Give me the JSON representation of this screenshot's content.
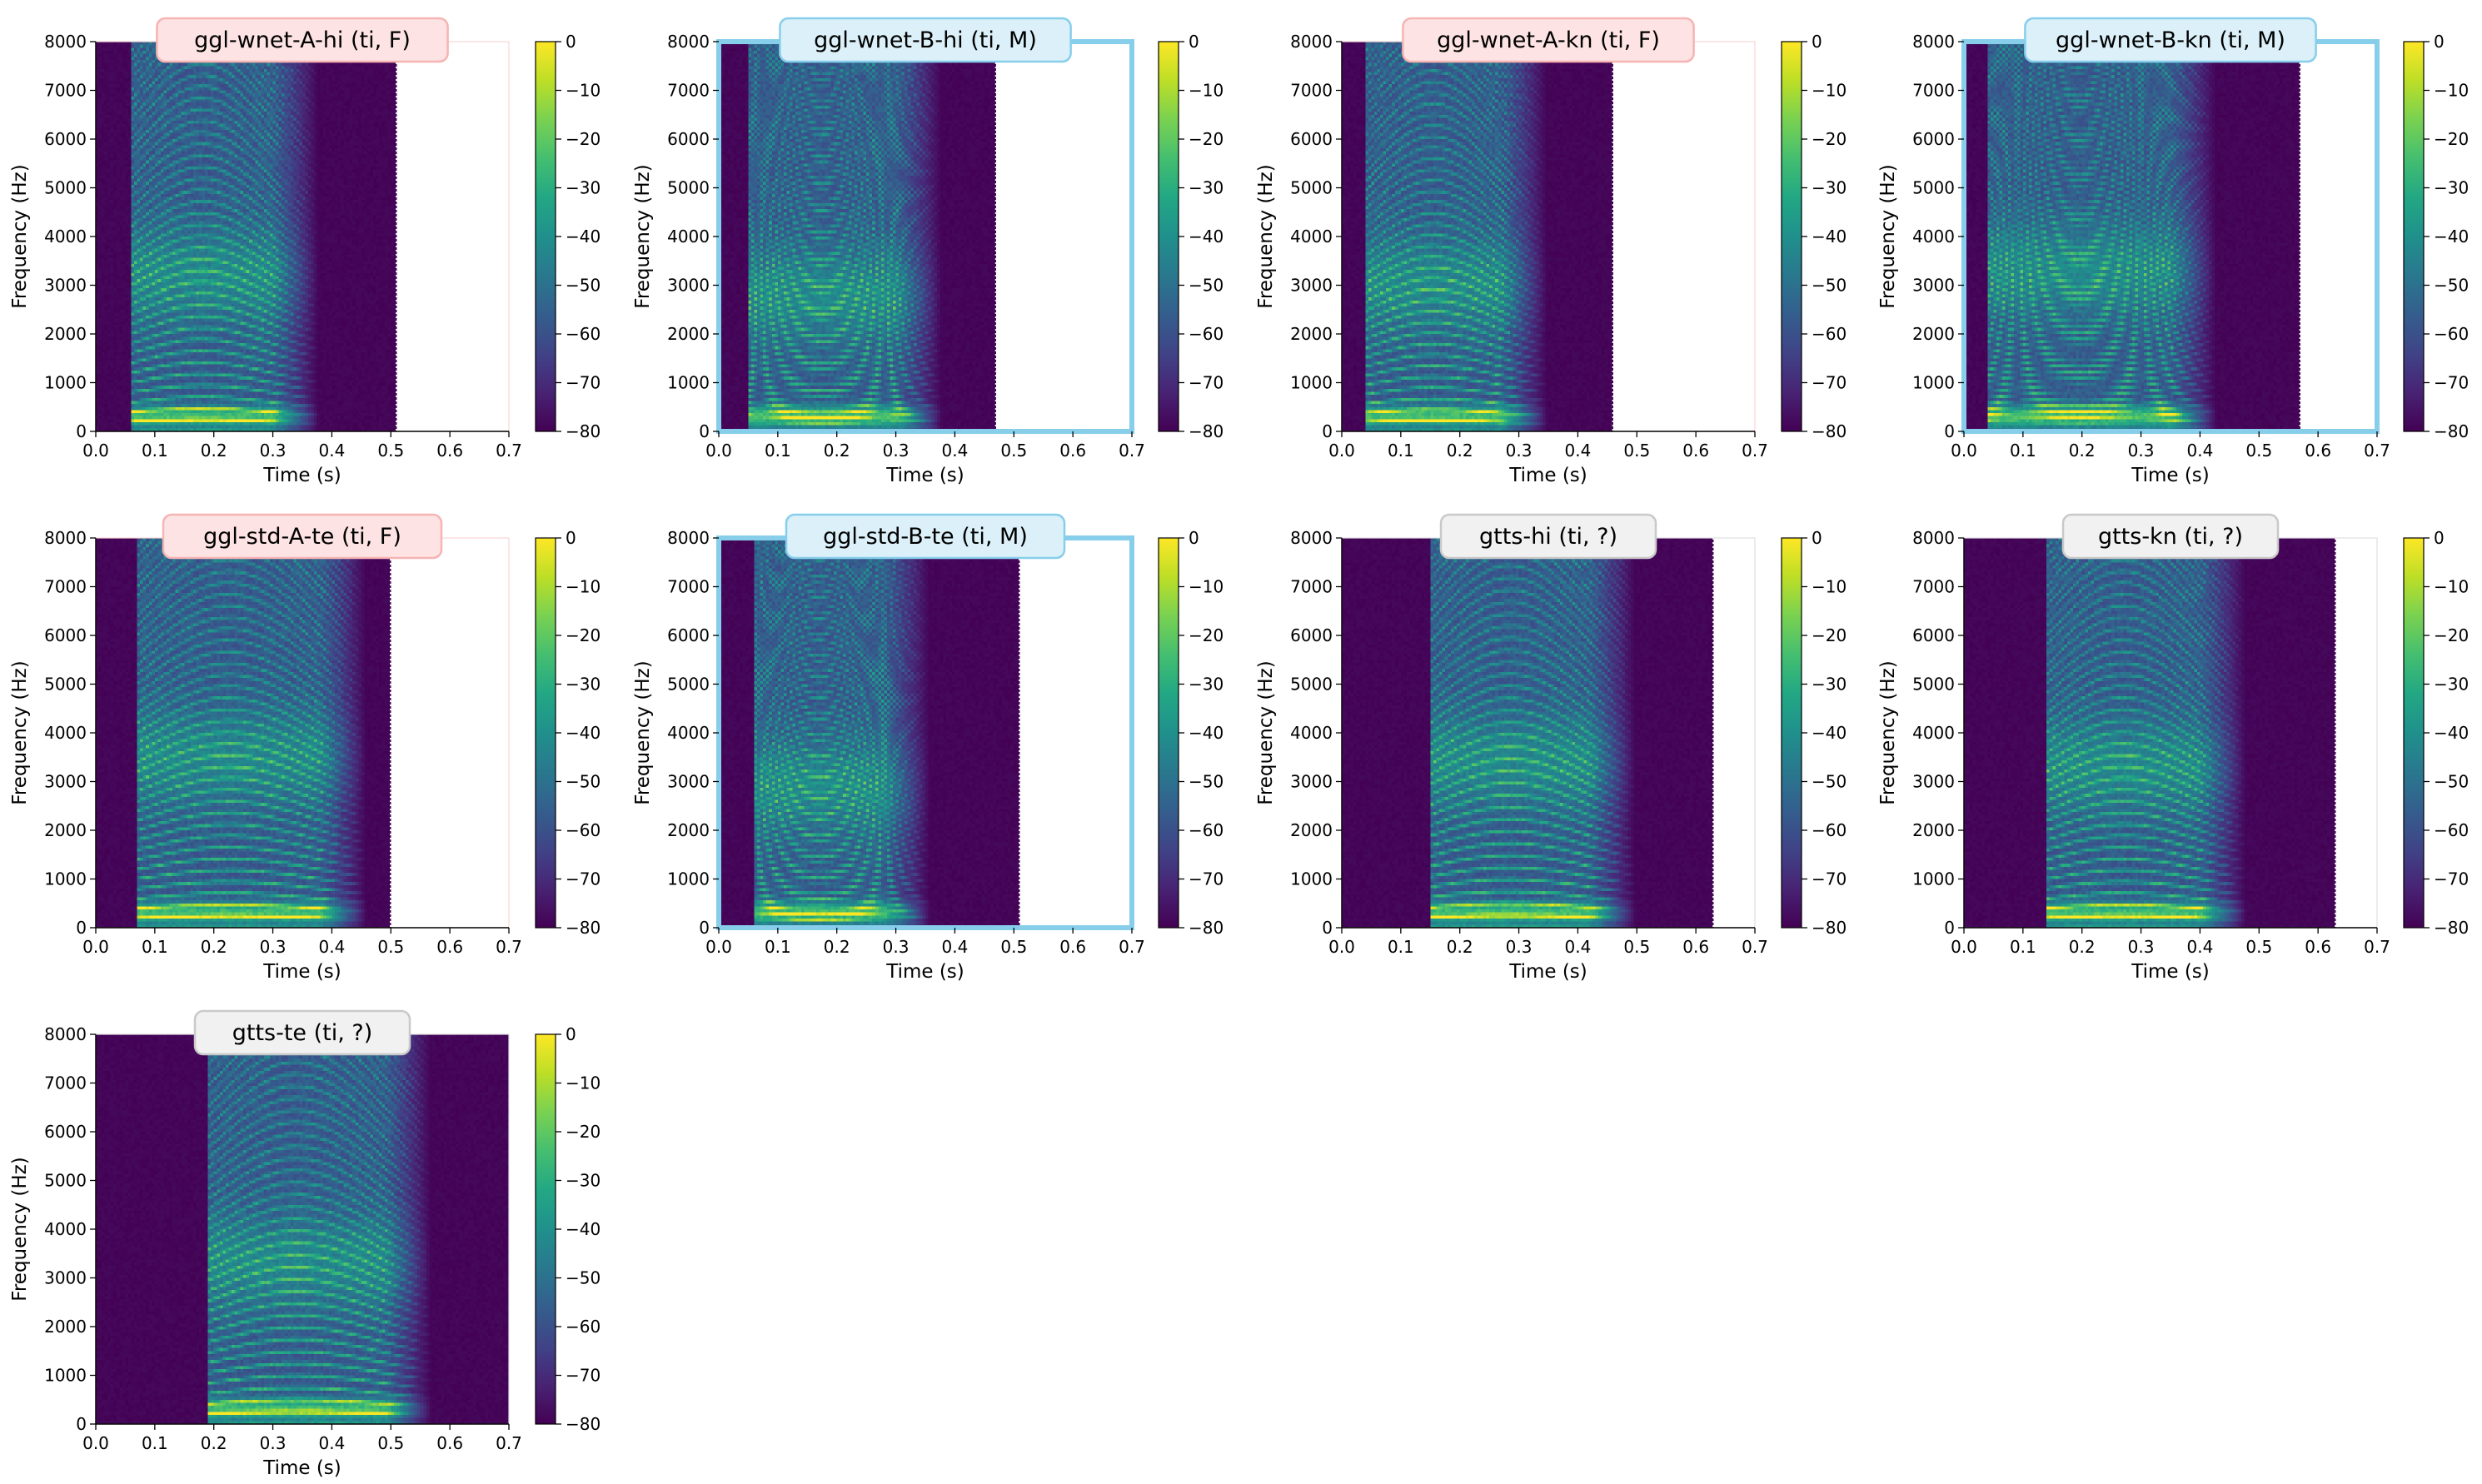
{
  "chart_data": {
    "type": "heatmap",
    "layout": {
      "rows": 3,
      "cols": 4
    },
    "axes": {
      "xlabel": "Time (s)",
      "ylabel": "Frequency (Hz)",
      "xlim": [
        0.0,
        0.7
      ],
      "ylim": [
        0,
        8000
      ],
      "xticks": [
        0.0,
        0.1,
        0.2,
        0.3,
        0.4,
        0.5,
        0.6,
        0.7
      ],
      "xtick_labels": [
        "0.0",
        "0.1",
        "0.2",
        "0.3",
        "0.4",
        "0.5",
        "0.6",
        "0.7"
      ],
      "yticks": [
        0,
        1000,
        2000,
        3000,
        4000,
        5000,
        6000,
        7000,
        8000
      ],
      "ytick_labels": [
        "0",
        "1000",
        "2000",
        "3000",
        "4000",
        "5000",
        "6000",
        "7000",
        "8000"
      ]
    },
    "colorbar": {
      "colormap": "viridis",
      "range": [
        -80,
        0
      ],
      "ticks": [
        0,
        -10,
        -20,
        -30,
        -40,
        -50,
        -60,
        -70,
        -80
      ],
      "tick_labels": [
        "0",
        "−10",
        "−20",
        "−30",
        "−40",
        "−50",
        "−60",
        "−70",
        "−80"
      ]
    },
    "panels": [
      {
        "title": "ggl-wnet-A-hi (ti, F)",
        "gender": "F",
        "duration": 0.51,
        "onset": 0.06,
        "voice_end": 0.3,
        "harmonic_spacing": 200,
        "formant": 3200,
        "emph": false
      },
      {
        "title": "ggl-wnet-B-hi (ti, M)",
        "gender": "M",
        "duration": 0.47,
        "onset": 0.05,
        "voice_end": 0.3,
        "harmonic_spacing": 120,
        "formant": 2800,
        "emph": true
      },
      {
        "title": "ggl-wnet-A-kn (ti, F)",
        "gender": "F",
        "duration": 0.46,
        "onset": 0.04,
        "voice_end": 0.27,
        "harmonic_spacing": 190,
        "formant": 3000,
        "emph": false
      },
      {
        "title": "ggl-wnet-B-kn (ti, M)",
        "gender": "M",
        "duration": 0.57,
        "onset": 0.04,
        "voice_end": 0.35,
        "harmonic_spacing": 115,
        "formant": 3300,
        "emph": true
      },
      {
        "title": "ggl-std-A-te (ti, F)",
        "gender": "F",
        "duration": 0.5,
        "onset": 0.07,
        "voice_end": 0.38,
        "harmonic_spacing": 200,
        "formant": 3500,
        "emph": false
      },
      {
        "title": "ggl-std-B-te (ti, M)",
        "gender": "M",
        "duration": 0.51,
        "onset": 0.06,
        "voice_end": 0.28,
        "harmonic_spacing": 125,
        "formant": 2900,
        "emph": true
      },
      {
        "title": "gtts-hi (ti, ?)",
        "gender": "?",
        "duration": 0.63,
        "onset": 0.15,
        "voice_end": 0.42,
        "harmonic_spacing": 210,
        "formant": 3400,
        "emph": false
      },
      {
        "title": "gtts-kn (ti, ?)",
        "gender": "?",
        "duration": 0.63,
        "onset": 0.14,
        "voice_end": 0.4,
        "harmonic_spacing": 200,
        "formant": 3300,
        "emph": false
      },
      {
        "title": "gtts-te (ti, ?)",
        "gender": "?",
        "duration": 0.7,
        "onset": 0.19,
        "voice_end": 0.49,
        "harmonic_spacing": 210,
        "formant": 3300,
        "emph": false
      }
    ],
    "title_styles": {
      "F": {
        "bg": "#fde3e3",
        "border": "#f6b4b4"
      },
      "M": {
        "bg": "#dbf0f8",
        "border": "#87ceeb"
      },
      "?": {
        "bg": "#f1f1f1",
        "border": "#c9c9c9"
      }
    },
    "emphasis_frame_color": "#87ceeb"
  }
}
